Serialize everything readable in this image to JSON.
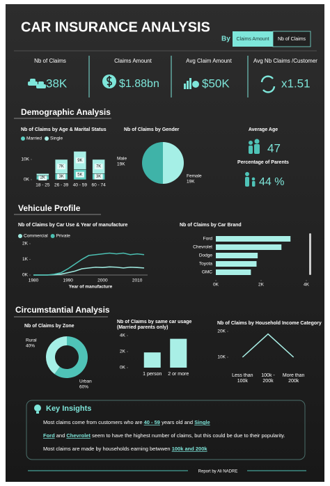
{
  "header": {
    "title": "CAR INSURANCE ANALYSIS",
    "by": "By",
    "buttons": [
      "Claims Amount",
      "Nb of Claims"
    ]
  },
  "kpis": [
    {
      "label": "Nb of Claims",
      "value": "38K"
    },
    {
      "label": "Claims Amount",
      "value": "$1.88bn"
    },
    {
      "label": "Avg Claim Amount",
      "value": "$50K"
    },
    {
      "label": "Avg Nb Claims /Customer",
      "value": "x1.51"
    }
  ],
  "sections": [
    "Demographic Analysis",
    "Vehicule Profile",
    "Circumstantial Analysis"
  ],
  "age_stats": {
    "average_age_label": "Average Age",
    "average_age": "47",
    "parents_label": "Percentage of Parents",
    "parents": "44 %"
  },
  "chart_data": [
    {
      "type": "stacked_bar",
      "title": "Nb of Claims by Age & Marital Status",
      "categories": [
        "18 - 25",
        "26 - 39",
        "40 - 59",
        "60 - 74"
      ],
      "series": [
        {
          "name": "Married",
          "color": "#5fcfc3",
          "values": [
            2000,
            3000,
            5000,
            3000
          ],
          "value_labels": [
            "2K",
            "3K",
            "5K",
            "3K"
          ]
        },
        {
          "name": "Single",
          "color": "#a9efe6",
          "values": [
            1000,
            7000,
            9000,
            7000
          ],
          "value_labels": [
            null,
            "7K",
            "9K",
            "7K"
          ]
        }
      ],
      "ylim": [
        0,
        15000
      ],
      "yticks": [
        {
          "value": 0,
          "label": "0K"
        },
        {
          "value": 10000,
          "label": "10K"
        }
      ]
    },
    {
      "type": "pie",
      "title": "Nb of Claims by Gender",
      "categories": [
        "Male",
        "Female"
      ],
      "values": [
        19000,
        19000
      ],
      "value_labels": [
        "19K",
        "19K"
      ],
      "colors": [
        "#3fb3a8",
        "#a5efe6"
      ]
    },
    {
      "type": "line",
      "title": "Nb of Claims by Car Use & Year of manufacture",
      "x_label": "Year of manufacture",
      "x": [
        1980,
        1982,
        1984,
        1986,
        1988,
        1990,
        1992,
        1994,
        1996,
        1998,
        2000,
        2002,
        2004,
        2006,
        2008,
        2010,
        2012
      ],
      "series": [
        {
          "name": "Commercial",
          "color": "#9ee8de",
          "values": [
            0,
            0,
            0,
            20,
            60,
            150,
            250,
            400,
            450,
            500,
            480,
            520,
            500,
            450,
            500,
            480,
            450
          ]
        },
        {
          "name": "Private",
          "color": "#4cbfb2",
          "values": [
            0,
            0,
            0,
            50,
            150,
            400,
            700,
            1000,
            1250,
            1300,
            1350,
            1400,
            1350,
            1400,
            1300,
            1350,
            1300
          ]
        }
      ],
      "xlim": [
        1980,
        2013
      ],
      "xticks": [
        1980,
        1990,
        2000,
        2010
      ],
      "ylim": [
        0,
        2000
      ],
      "yticks": [
        {
          "value": 0,
          "label": "0K"
        },
        {
          "value": 1000,
          "label": "1K"
        },
        {
          "value": 2000,
          "label": "2K"
        }
      ]
    },
    {
      "type": "hbar",
      "title": "Nb of Claims by Car Brand",
      "categories": [
        "Ford",
        "Chevrolet",
        "Dodge",
        "Toyota",
        "GMC"
      ],
      "values": [
        3300,
        2900,
        1850,
        1800,
        1550
      ],
      "color": "#a9efe6",
      "xlim": [
        0,
        4000
      ],
      "xticks": [
        {
          "value": 0,
          "label": "0K"
        },
        {
          "value": 2000,
          "label": "2K"
        },
        {
          "value": 4000,
          "label": "4K"
        }
      ]
    },
    {
      "type": "donut",
      "title": "Nb of Claims by Zone",
      "categories": [
        "Rural",
        "Urban"
      ],
      "values": [
        40,
        60
      ],
      "value_labels": [
        "40%",
        "60%"
      ],
      "colors": [
        "#a5efe6",
        "#4fc3b7"
      ]
    },
    {
      "type": "bar",
      "title": "Nb of Claims by same car usage (Married parents only)",
      "categories": [
        "1 person",
        "2 or more"
      ],
      "values": [
        1900,
        3600
      ],
      "color": "#a9efe6",
      "ylim": [
        0,
        4000
      ],
      "yticks": [
        {
          "value": 0,
          "label": "0K"
        },
        {
          "value": 2000,
          "label": "2K"
        },
        {
          "value": 4000,
          "label": "4K"
        }
      ]
    },
    {
      "type": "cat_line",
      "title": "Nb of Claims by Household Income Category",
      "categories": [
        "Less than 100k",
        "100k - 200k",
        "More than 200k"
      ],
      "values": [
        10000,
        19000,
        10000
      ],
      "color": "#a9efe6",
      "ylim": [
        5000,
        21000
      ],
      "yticks": [
        {
          "value": 10000,
          "label": "10K"
        },
        {
          "value": 20000,
          "label": "20K"
        }
      ]
    }
  ],
  "insights": {
    "title": "Key Insights",
    "lines": [
      [
        "Most claims come from customers who are ",
        "40 - 59",
        " years old and ",
        "Single"
      ],
      [
        "Ford",
        " and ",
        "Chevrolet",
        " seem to have the highest number of claims, but this could be due to their popularity."
      ],
      [
        "Most claims are made by households earning betwwen ",
        "100k and 200k"
      ]
    ]
  },
  "footer": "Report by Ali NADRE"
}
